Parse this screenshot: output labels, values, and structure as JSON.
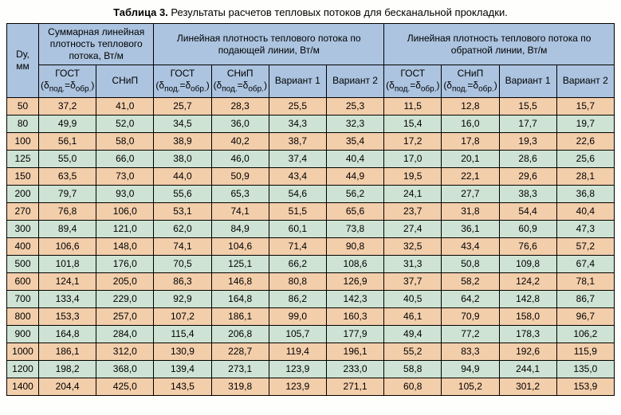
{
  "caption_bold": "Таблица 3.",
  "caption_rest": " Результаты расчетов тепловых потоков для бесканальной прокладки.",
  "header": {
    "dy": "Dу,\nмм",
    "group1": "Суммарная линейная плотность теплового потока, Вт/м",
    "group2": "Линейная плотность теплового потока по подающей линии, Вт/м",
    "group3": "Линейная плотность теплового потока по обратной линии, Вт/м",
    "gost_label": "ГОСТ",
    "gost_sub": "(δ_под.=δ_обр.)",
    "snip": "СНиП",
    "snip_sub": "(δ_под.=δ_обр.)",
    "var1": "Вариант 1",
    "var2": "Вариант 2"
  },
  "colors": {
    "header_bg": "#acc4e0",
    "row_odd": "#f3ceab",
    "row_even": "#cee3d3",
    "border": "#000000"
  },
  "rows": [
    {
      "dy": "50",
      "g1": "37,2",
      "g2": "41,0",
      "p_gost": "25,7",
      "p_snip": "28,3",
      "p_v1": "25,5",
      "p_v2": "25,3",
      "o_gost": "11,5",
      "o_snip": "12,8",
      "o_v1": "15,5",
      "o_v2": "15,7"
    },
    {
      "dy": "80",
      "g1": "49,9",
      "g2": "52,0",
      "p_gost": "34,5",
      "p_snip": "36,0",
      "p_v1": "34,3",
      "p_v2": "32,3",
      "o_gost": "15,4",
      "o_snip": "16,0",
      "o_v1": "17,7",
      "o_v2": "19,7"
    },
    {
      "dy": "100",
      "g1": "56,1",
      "g2": "58,0",
      "p_gost": "38,9",
      "p_snip": "40,2",
      "p_v1": "38,7",
      "p_v2": "35,4",
      "o_gost": "17,2",
      "o_snip": "17,8",
      "o_v1": "19,3",
      "o_v2": "22,6"
    },
    {
      "dy": "125",
      "g1": "55,0",
      "g2": "66,0",
      "p_gost": "38,0",
      "p_snip": "46,0",
      "p_v1": "37,4",
      "p_v2": "40,4",
      "o_gost": "17,0",
      "o_snip": "20,1",
      "o_v1": "28,6",
      "o_v2": "25,6"
    },
    {
      "dy": "150",
      "g1": "63,5",
      "g2": "73,0",
      "p_gost": "44,0",
      "p_snip": "50,9",
      "p_v1": "43,4",
      "p_v2": "44,9",
      "o_gost": "19,5",
      "o_snip": "22,1",
      "o_v1": "29,6",
      "o_v2": "28,1"
    },
    {
      "dy": "200",
      "g1": "79,7",
      "g2": "93,0",
      "p_gost": "55,6",
      "p_snip": "65,3",
      "p_v1": "54,6",
      "p_v2": "56,2",
      "o_gost": "24,1",
      "o_snip": "27,7",
      "o_v1": "38,3",
      "o_v2": "36,8"
    },
    {
      "dy": "270",
      "g1": "76,8",
      "g2": "106,0",
      "p_gost": "53,1",
      "p_snip": "74,1",
      "p_v1": "51,5",
      "p_v2": "65,6",
      "o_gost": "23,7",
      "o_snip": "31,8",
      "o_v1": "54,4",
      "o_v2": "40,4"
    },
    {
      "dy": "300",
      "g1": "89,4",
      "g2": "121,0",
      "p_gost": "62,0",
      "p_snip": "84,9",
      "p_v1": "60,1",
      "p_v2": "73,8",
      "o_gost": "27,4",
      "o_snip": "36,1",
      "o_v1": "60,9",
      "o_v2": "47,3"
    },
    {
      "dy": "400",
      "g1": "106,6",
      "g2": "148,0",
      "p_gost": "74,1",
      "p_snip": "104,6",
      "p_v1": "71,4",
      "p_v2": "90,8",
      "o_gost": "32,5",
      "o_snip": "43,4",
      "o_v1": "76,6",
      "o_v2": "57,2"
    },
    {
      "dy": "500",
      "g1": "101,8",
      "g2": "176,0",
      "p_gost": "70,5",
      "p_snip": "125,1",
      "p_v1": "66,2",
      "p_v2": "108,6",
      "o_gost": "31,3",
      "o_snip": "50,8",
      "o_v1": "109,8",
      "o_v2": "67,4"
    },
    {
      "dy": "600",
      "g1": "124,1",
      "g2": "205,0",
      "p_gost": "86,3",
      "p_snip": "146,8",
      "p_v1": "80,8",
      "p_v2": "126,9",
      "o_gost": "37,7",
      "o_snip": "58,2",
      "o_v1": "124,2",
      "o_v2": "78,1"
    },
    {
      "dy": "700",
      "g1": "133,4",
      "g2": "229,0",
      "p_gost": "92,9",
      "p_snip": "164,8",
      "p_v1": "86,2",
      "p_v2": "142,3",
      "o_gost": "40,5",
      "o_snip": "64,2",
      "o_v1": "142,8",
      "o_v2": "86,7"
    },
    {
      "dy": "800",
      "g1": "153,3",
      "g2": "257,0",
      "p_gost": "107,2",
      "p_snip": "186,1",
      "p_v1": "99,0",
      "p_v2": "160,3",
      "o_gost": "46,1",
      "o_snip": "70,9",
      "o_v1": "158,0",
      "o_v2": "96,7"
    },
    {
      "dy": "900",
      "g1": "164,8",
      "g2": "284,0",
      "p_gost": "115,4",
      "p_snip": "206,8",
      "p_v1": "105,7",
      "p_v2": "177,9",
      "o_gost": "49,4",
      "o_snip": "77,2",
      "o_v1": "178,3",
      "o_v2": "106,2"
    },
    {
      "dy": "1000",
      "g1": "186,1",
      "g2": "312,0",
      "p_gost": "130,9",
      "p_snip": "228,7",
      "p_v1": "119,4",
      "p_v2": "196,1",
      "o_gost": "55,2",
      "o_snip": "83,3",
      "o_v1": "192,6",
      "o_v2": "115,9"
    },
    {
      "dy": "1200",
      "g1": "198,2",
      "g2": "368,0",
      "p_gost": "139,4",
      "p_snip": "273,1",
      "p_v1": "123,9",
      "p_v2": "233,0",
      "o_gost": "58,8",
      "o_snip": "94,9",
      "o_v1": "244,1",
      "o_v2": "135,0"
    },
    {
      "dy": "1400",
      "g1": "204,4",
      "g2": "425,0",
      "p_gost": "143,5",
      "p_snip": "319,8",
      "p_v1": "123,9",
      "p_v2": "271,1",
      "o_gost": "60,8",
      "o_snip": "105,2",
      "o_v1": "301,2",
      "o_v2": "153,9"
    }
  ]
}
